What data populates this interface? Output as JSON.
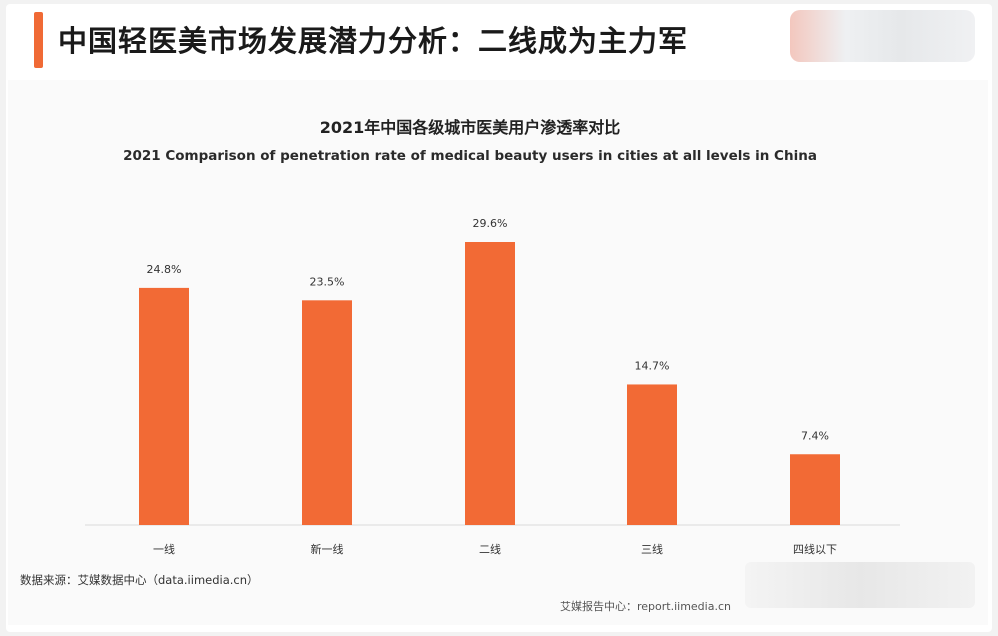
{
  "header": {
    "title": "中国轻医美市场发展潜力分析：二线成为主力军"
  },
  "colors": {
    "accent": "#f06a35",
    "bar": "#f26a35"
  },
  "chart_data": {
    "type": "bar",
    "title": "2021年中国各级城市医美用户渗透率对比",
    "subtitle": "2021 Comparison of penetration rate of medical beauty users in cities at all levels in China",
    "categories": [
      "一线",
      "新一线",
      "二线",
      "三线",
      "四线以下"
    ],
    "values": [
      24.8,
      23.5,
      29.6,
      14.7,
      7.4
    ],
    "value_labels": [
      "24.8%",
      "23.5%",
      "29.6%",
      "14.7%",
      "7.4%"
    ],
    "unit": "%",
    "xlabel": "",
    "ylabel": "",
    "ylim": [
      0,
      30
    ],
    "grid": false,
    "legend": "none"
  },
  "footer": {
    "source": "数据来源：艾媒数据中心（data.iimedia.cn）",
    "report": "艾媒报告中心：report.iimedia.cn"
  }
}
